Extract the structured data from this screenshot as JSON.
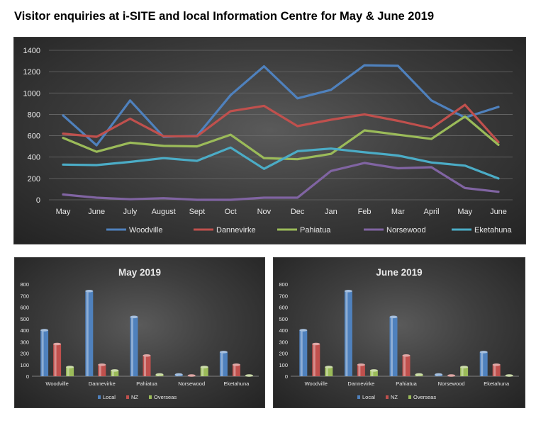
{
  "page": {
    "title": "Visitor enquiries at i-SITE and local Information Centre for May & June 2019"
  },
  "chart_data": [
    {
      "type": "line",
      "title": "",
      "x": [
        "May",
        "June",
        "July",
        "August",
        "Sept",
        "Oct",
        "Nov",
        "Dec",
        "Jan",
        "Feb",
        "Mar",
        "April",
        "May",
        "June"
      ],
      "ylim": [
        0,
        1400
      ],
      "yticks": [
        0,
        200,
        400,
        600,
        800,
        1000,
        1200,
        1400
      ],
      "grid": true,
      "legend": "bottom",
      "series": [
        {
          "name": "Woodville",
          "color": "#4f81bd",
          "values": [
            790,
            510,
            930,
            590,
            600,
            980,
            1250,
            950,
            1030,
            1260,
            1255,
            930,
            770,
            870
          ]
        },
        {
          "name": "Dannevirke",
          "color": "#c0504d",
          "values": [
            620,
            590,
            760,
            595,
            595,
            830,
            880,
            690,
            750,
            800,
            740,
            670,
            890,
            540
          ]
        },
        {
          "name": "Pahiatua",
          "color": "#9bbb59",
          "values": [
            580,
            450,
            535,
            505,
            500,
            610,
            390,
            380,
            430,
            650,
            610,
            570,
            780,
            515
          ]
        },
        {
          "name": "Norsewood",
          "color": "#8064a2",
          "values": [
            50,
            20,
            5,
            15,
            0,
            0,
            20,
            20,
            270,
            345,
            295,
            305,
            110,
            75
          ]
        },
        {
          "name": "Eketahuna",
          "color": "#4bacc6",
          "values": [
            330,
            325,
            355,
            390,
            365,
            490,
            290,
            455,
            480,
            445,
            415,
            350,
            320,
            200
          ]
        }
      ]
    },
    {
      "type": "bar",
      "title": "May 2019",
      "categories": [
        "Woodville",
        "Dannevirke",
        "Pahiatua",
        "Norsewood",
        "Eketahuna"
      ],
      "ylim": [
        0,
        800
      ],
      "yticks": [
        0,
        100,
        200,
        300,
        400,
        500,
        600,
        700,
        800
      ],
      "grid": false,
      "legend": "bottom",
      "series": [
        {
          "name": "Local",
          "color": "#4f81bd",
          "values": [
            400,
            740,
            515,
            15,
            210
          ]
        },
        {
          "name": "NZ",
          "color": "#c0504d",
          "values": [
            280,
            100,
            180,
            5,
            100
          ]
        },
        {
          "name": "Overseas",
          "color": "#9bbb59",
          "values": [
            80,
            50,
            15,
            80,
            5
          ]
        }
      ]
    },
    {
      "type": "bar",
      "title": "June 2019",
      "categories": [
        "Woodville",
        "Dannevirke",
        "Pahiatua",
        "Norsewood",
        "Eketahuna"
      ],
      "ylim": [
        0,
        800
      ],
      "yticks": [
        0,
        100,
        200,
        300,
        400,
        500,
        600,
        700,
        800
      ],
      "grid": false,
      "legend": "bottom",
      "series": [
        {
          "name": "Local",
          "color": "#4f81bd",
          "values": [
            400,
            740,
            515,
            15,
            210
          ]
        },
        {
          "name": "NZ",
          "color": "#c0504d",
          "values": [
            280,
            100,
            180,
            5,
            100
          ]
        },
        {
          "name": "Overseas",
          "color": "#9bbb59",
          "values": [
            80,
            50,
            15,
            80,
            5
          ]
        }
      ]
    }
  ]
}
